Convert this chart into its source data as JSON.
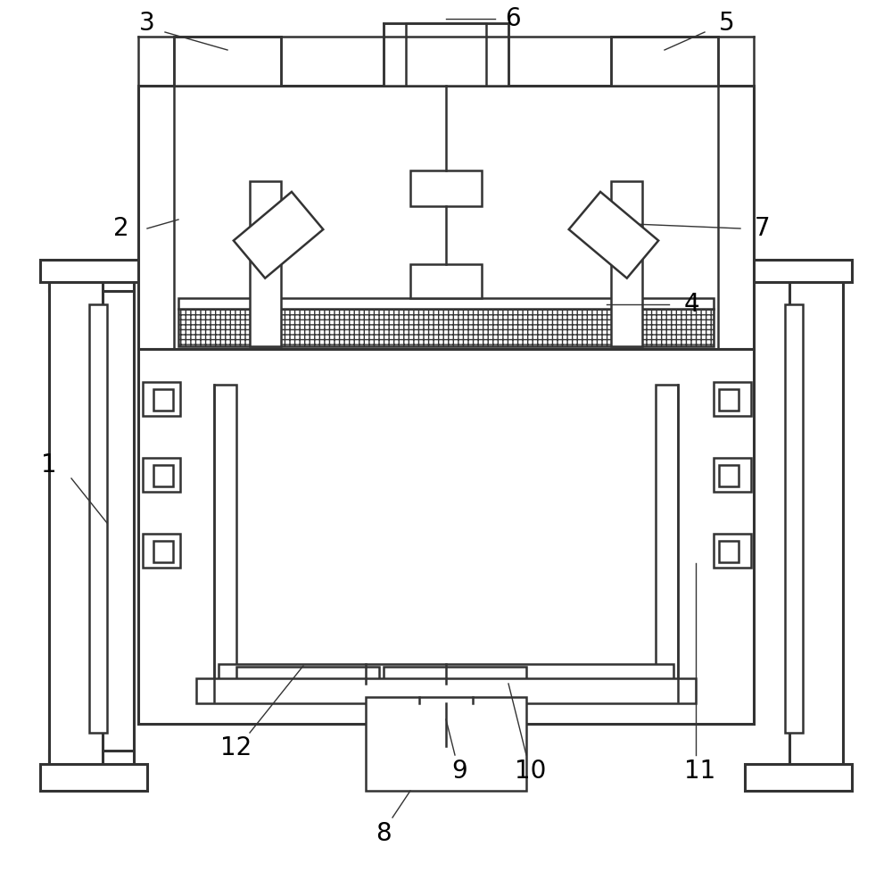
{
  "bg_color": "#ffffff",
  "line_color": "#333333",
  "lw": 1.8,
  "tlw": 2.2
}
